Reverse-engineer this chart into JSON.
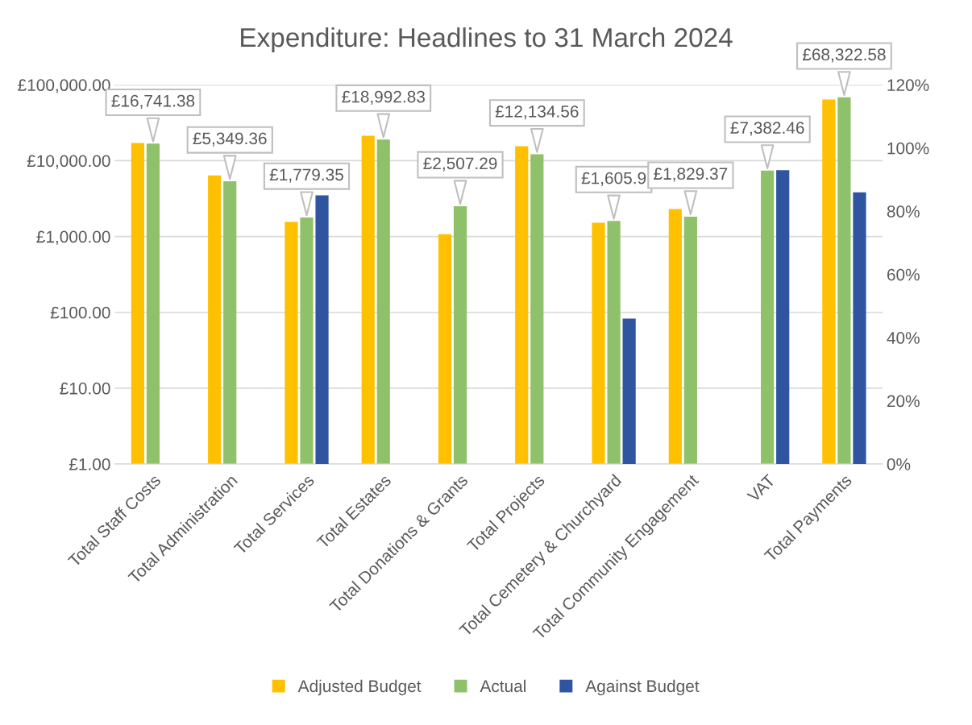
{
  "chart_data": {
    "type": "bar",
    "title": "Expenditure: Headlines to 31 March 2024",
    "categories": [
      "Total Staff Costs",
      "Total Administration",
      "Total Services",
      "Total Estates",
      "Total Donations & Grants",
      "Total Projects",
      "Total Cemetery & Churchyard",
      "Total Community Engagement",
      "VAT",
      "Total Payments"
    ],
    "series": [
      {
        "name": "Adjusted Budget",
        "color": "#ffc000",
        "values": [
          17100,
          6400,
          1560,
          21300,
          1070,
          15500,
          1520,
          2300,
          null,
          64000
        ]
      },
      {
        "name": "Actual",
        "color": "#8fc16a",
        "values": [
          16741.38,
          5349.36,
          1779.35,
          18992.83,
          2507.29,
          12134.56,
          1605.9,
          1829.37,
          7382.46,
          68322.58
        ],
        "value_labels": [
          "£16,741.38",
          "£5,349.36",
          "£1,779.35",
          "£18,992.83",
          "£2,507.29",
          "£12,134.56",
          "£1,605.9",
          "£1,829.37",
          "£7,382.46",
          "£68,322.58"
        ]
      },
      {
        "name": "Against Budget",
        "color": "#2f55a0",
        "axis": "y2",
        "values": [
          null,
          null,
          85,
          null,
          null,
          null,
          46,
          null,
          93,
          86
        ]
      }
    ],
    "log": "y",
    "ylim": [
      1,
      100000
    ],
    "yticks": [
      {
        "value": 1,
        "label": "£1.00"
      },
      {
        "value": 10,
        "label": "£10.00"
      },
      {
        "value": 100,
        "label": "£100.00"
      },
      {
        "value": 1000,
        "label": "£1,000.00"
      },
      {
        "value": 10000,
        "label": "£10,000.00"
      },
      {
        "value": 100000,
        "label": "£100,000.00"
      }
    ],
    "y2lim": [
      0,
      120
    ],
    "y2ticks": [
      {
        "value": 0,
        "label": "0%"
      },
      {
        "value": 20,
        "label": "20%"
      },
      {
        "value": 40,
        "label": "40%"
      },
      {
        "value": 60,
        "label": "60%"
      },
      {
        "value": 80,
        "label": "80%"
      },
      {
        "value": 100,
        "label": "100%"
      },
      {
        "value": 120,
        "label": "120%"
      }
    ],
    "grid": "y",
    "legend": "bottom"
  }
}
